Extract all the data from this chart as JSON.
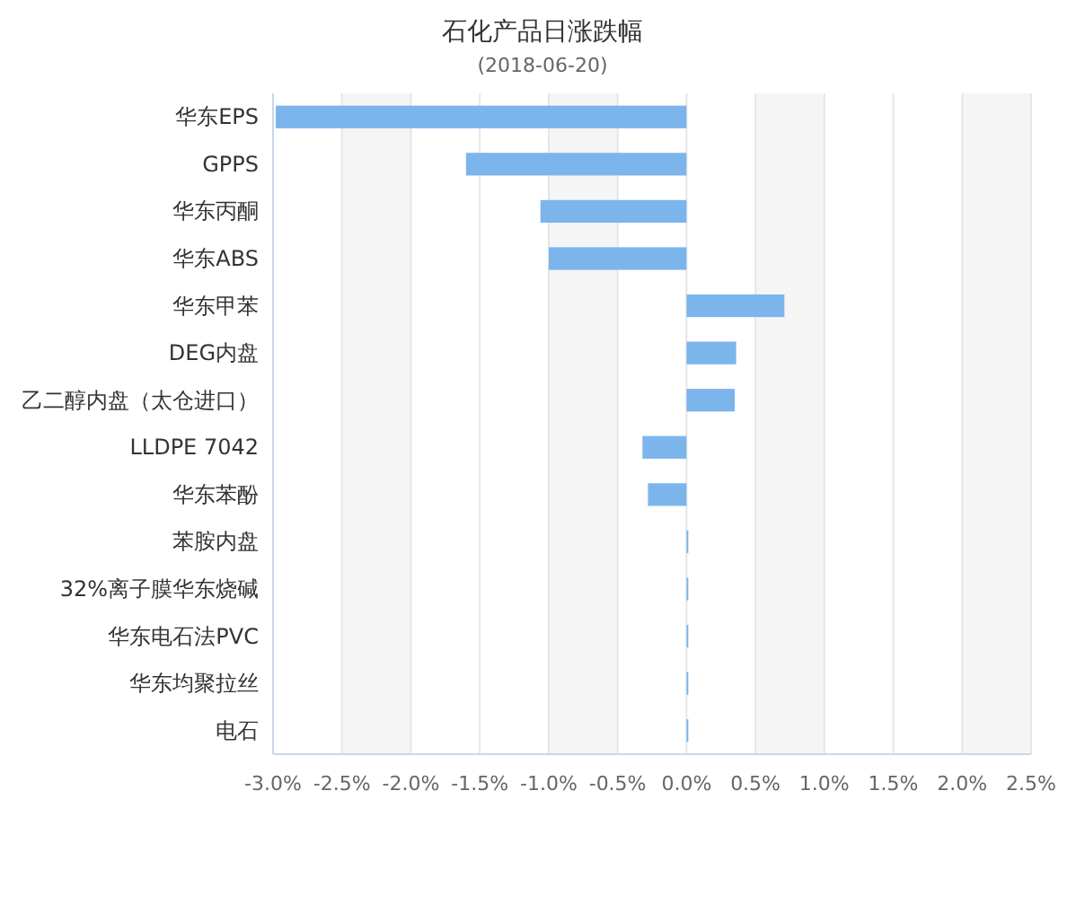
{
  "chart_data": {
    "type": "bar",
    "orientation": "horizontal",
    "title": "石化产品日涨跌幅",
    "subtitle": "(2018-06-20)",
    "categories": [
      "华东EPS",
      "GPPS",
      "华东丙酮",
      "华东ABS",
      "华东甲苯",
      "DEG内盘",
      "乙二醇内盘（太仓进口）",
      "LLDPE 7042",
      "华东苯酚",
      "苯胺内盘",
      "32%离子膜华东烧碱",
      "华东电石法PVC",
      "华东均聚拉丝",
      "电石"
    ],
    "series": [
      {
        "color": "#7cb5ec",
        "values": [
          -2.98,
          -1.6,
          -1.06,
          -1.0,
          0.71,
          0.36,
          0.35,
          -0.32,
          -0.28,
          0,
          0,
          0,
          0,
          0
        ]
      }
    ],
    "xlim": [
      -3.0,
      2.5
    ],
    "xticks": [
      {
        "value": -3.0,
        "label": "-3.0%"
      },
      {
        "value": -2.5,
        "label": "-2.5%"
      },
      {
        "value": -2.0,
        "label": "-2.0%"
      },
      {
        "value": -1.5,
        "label": "-1.5%"
      },
      {
        "value": -1.0,
        "label": "-1.0%"
      },
      {
        "value": -0.5,
        "label": "-0.5%"
      },
      {
        "value": 0,
        "label": "0.0%"
      },
      {
        "value": 0.5,
        "label": "0.5%"
      },
      {
        "value": 1.0,
        "label": "1.0%"
      },
      {
        "value": 1.5,
        "label": "1.5%"
      },
      {
        "value": 2.0,
        "label": "2.0%"
      },
      {
        "value": 2.5,
        "label": "2.5%"
      }
    ],
    "bands": [
      {
        "axis": "x",
        "from": -2.5,
        "to": -2.0,
        "color": "#f5f5f5"
      },
      {
        "axis": "x",
        "from": -1.0,
        "to": -0.5,
        "color": "#f5f5f5"
      },
      {
        "axis": "x",
        "from": 0.5,
        "to": 1.0,
        "color": "#f5f5f5"
      },
      {
        "axis": "x",
        "from": 2.0,
        "to": 2.5,
        "color": "#f5f5f5"
      }
    ],
    "grid": "x"
  }
}
